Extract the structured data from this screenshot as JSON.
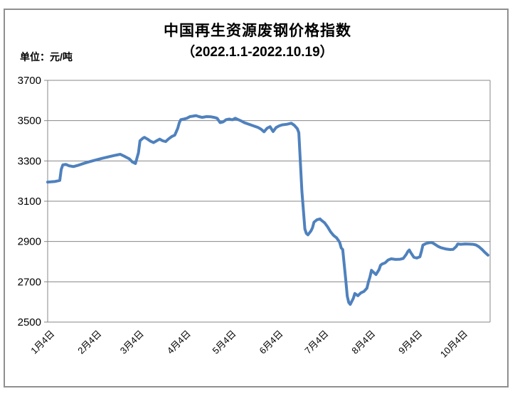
{
  "title": "中国再生资源废钢价格指数",
  "subtitle": "（2022.1.1-2022.10.19）",
  "unit_label": "单位：元/吨",
  "colors": {
    "line": "#4F81BD",
    "grid": "#878787",
    "axis": "#878787",
    "frame_border": "#8f8f8f",
    "text": "#000000",
    "background": "#ffffff"
  },
  "chart_data": {
    "type": "line",
    "title": "中国再生资源废钢价格指数",
    "subtitle": "（2022.1.1-2022.10.19）",
    "ylabel": "元/吨",
    "ylim": [
      2500,
      3700
    ],
    "ytick_interval": 200,
    "yticks": [
      3700,
      3500,
      3300,
      3100,
      2900,
      2700,
      2500
    ],
    "x_unit": "days since 2022-01-01",
    "x_range_days": [
      0,
      291
    ],
    "xtick_labels": [
      "1月4日",
      "2月4日",
      "3月4日",
      "4月4日",
      "5月4日",
      "6月4日",
      "7月4日",
      "8月4日",
      "9月4日",
      "10月4日"
    ],
    "xtick_days": [
      3,
      34,
      62,
      93,
      123,
      154,
      184,
      215,
      246,
      276
    ],
    "grid": "horizontal",
    "legend_position": "none",
    "line_color": "#4F81BD",
    "series": [
      {
        "name": "废钢价格指数",
        "points": [
          [
            0,
            3195
          ],
          [
            2,
            3196
          ],
          [
            5,
            3198
          ],
          [
            8,
            3203
          ],
          [
            9,
            3258
          ],
          [
            10,
            3280
          ],
          [
            12,
            3283
          ],
          [
            14,
            3276
          ],
          [
            17,
            3272
          ],
          [
            20,
            3278
          ],
          [
            24,
            3288
          ],
          [
            28,
            3297
          ],
          [
            32,
            3305
          ],
          [
            36,
            3313
          ],
          [
            40,
            3320
          ],
          [
            44,
            3327
          ],
          [
            48,
            3333
          ],
          [
            51,
            3322
          ],
          [
            54,
            3310
          ],
          [
            56,
            3295
          ],
          [
            58,
            3287
          ],
          [
            60,
            3340
          ],
          [
            61,
            3400
          ],
          [
            63,
            3413
          ],
          [
            64,
            3417
          ],
          [
            66,
            3408
          ],
          [
            68,
            3398
          ],
          [
            70,
            3391
          ],
          [
            72,
            3400
          ],
          [
            74,
            3408
          ],
          [
            76,
            3400
          ],
          [
            78,
            3396
          ],
          [
            80,
            3410
          ],
          [
            82,
            3421
          ],
          [
            84,
            3428
          ],
          [
            86,
            3462
          ],
          [
            87,
            3490
          ],
          [
            88,
            3505
          ],
          [
            90,
            3508
          ],
          [
            92,
            3512
          ],
          [
            94,
            3520
          ],
          [
            96,
            3522
          ],
          [
            98,
            3525
          ],
          [
            100,
            3520
          ],
          [
            102,
            3516
          ],
          [
            105,
            3520
          ],
          [
            108,
            3519
          ],
          [
            110,
            3516
          ],
          [
            112,
            3512
          ],
          [
            114,
            3490
          ],
          [
            116,
            3494
          ],
          [
            118,
            3505
          ],
          [
            120,
            3508
          ],
          [
            122,
            3504
          ],
          [
            124,
            3512
          ],
          [
            126,
            3505
          ],
          [
            128,
            3498
          ],
          [
            130,
            3490
          ],
          [
            133,
            3482
          ],
          [
            136,
            3474
          ],
          [
            139,
            3466
          ],
          [
            141,
            3458
          ],
          [
            143,
            3445
          ],
          [
            145,
            3462
          ],
          [
            147,
            3470
          ],
          [
            149,
            3446
          ],
          [
            151,
            3466
          ],
          [
            153,
            3474
          ],
          [
            155,
            3479
          ],
          [
            158,
            3482
          ],
          [
            161,
            3487
          ],
          [
            163,
            3477
          ],
          [
            165,
            3460
          ],
          [
            166,
            3440
          ],
          [
            168,
            3150
          ],
          [
            170,
            2962
          ],
          [
            171,
            2940
          ],
          [
            172,
            2933
          ],
          [
            174,
            2952
          ],
          [
            175,
            2968
          ],
          [
            176,
            2996
          ],
          [
            178,
            3008
          ],
          [
            180,
            3012
          ],
          [
            181,
            3005
          ],
          [
            183,
            2993
          ],
          [
            185,
            2973
          ],
          [
            187,
            2948
          ],
          [
            189,
            2930
          ],
          [
            191,
            2918
          ],
          [
            193,
            2896
          ],
          [
            194,
            2868
          ],
          [
            195,
            2860
          ],
          [
            197,
            2712
          ],
          [
            198,
            2628
          ],
          [
            199,
            2597
          ],
          [
            200,
            2588
          ],
          [
            202,
            2618
          ],
          [
            203,
            2642
          ],
          [
            205,
            2631
          ],
          [
            207,
            2645
          ],
          [
            209,
            2652
          ],
          [
            211,
            2668
          ],
          [
            212,
            2700
          ],
          [
            213,
            2724
          ],
          [
            214,
            2757
          ],
          [
            215,
            2750
          ],
          [
            217,
            2736
          ],
          [
            219,
            2760
          ],
          [
            220,
            2782
          ],
          [
            221,
            2788
          ],
          [
            223,
            2794
          ],
          [
            225,
            2808
          ],
          [
            227,
            2814
          ],
          [
            230,
            2811
          ],
          [
            233,
            2812
          ],
          [
            235,
            2816
          ],
          [
            237,
            2836
          ],
          [
            238,
            2850
          ],
          [
            239,
            2858
          ],
          [
            240,
            2845
          ],
          [
            242,
            2822
          ],
          [
            244,
            2818
          ],
          [
            246,
            2824
          ],
          [
            247,
            2850
          ],
          [
            248,
            2882
          ],
          [
            250,
            2890
          ],
          [
            252,
            2894
          ],
          [
            254,
            2895
          ],
          [
            256,
            2886
          ],
          [
            258,
            2876
          ],
          [
            260,
            2869
          ],
          [
            263,
            2863
          ],
          [
            266,
            2860
          ],
          [
            268,
            2861
          ],
          [
            270,
            2875
          ],
          [
            271,
            2888
          ],
          [
            273,
            2886
          ],
          [
            276,
            2888
          ],
          [
            279,
            2887
          ],
          [
            281,
            2886
          ],
          [
            283,
            2883
          ],
          [
            285,
            2874
          ],
          [
            287,
            2861
          ],
          [
            289,
            2846
          ],
          [
            291,
            2832
          ]
        ]
      }
    ]
  }
}
